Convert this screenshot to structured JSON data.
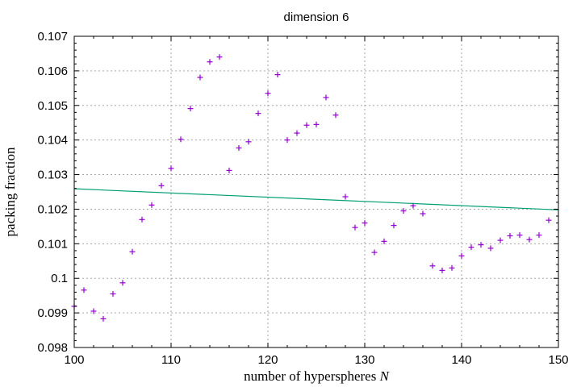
{
  "chart_data": {
    "type": "scatter",
    "title": "dimension 6",
    "xlabel_main": "number of hyperspheres ",
    "xlabel_var": "N",
    "ylabel": "packing fraction",
    "xlim": [
      100,
      150
    ],
    "ylim": [
      0.098,
      0.107
    ],
    "grid": true,
    "xticks": [
      100,
      110,
      120,
      130,
      140,
      150
    ],
    "xtick_labels": [
      "100",
      "110",
      "120",
      "130",
      "140",
      "150"
    ],
    "yticks": [
      0.098,
      0.099,
      0.1,
      0.101,
      0.102,
      0.103,
      0.104,
      0.105,
      0.106,
      0.107
    ],
    "ytick_labels": [
      "0.098",
      "0.099",
      "0.1",
      "0.101",
      "0.102",
      "0.103",
      "0.104",
      "0.105",
      "0.106",
      "0.107"
    ],
    "series": [
      {
        "kind": "points",
        "color": "#9400d3",
        "x": [
          100,
          101,
          102,
          103,
          104,
          105,
          106,
          107,
          108,
          109,
          110,
          111,
          112,
          113,
          114,
          115,
          116,
          117,
          118,
          119,
          120,
          121,
          122,
          123,
          124,
          125,
          126,
          127,
          128,
          129,
          130,
          131,
          132,
          133,
          134,
          135,
          136,
          137,
          138,
          139,
          140,
          141,
          142,
          143,
          144,
          145,
          146,
          147,
          148,
          149
        ],
        "y": [
          0.09919,
          0.09966,
          0.09905,
          0.09883,
          0.09955,
          0.09987,
          0.10077,
          0.1017,
          0.10212,
          0.10268,
          0.10318,
          0.10402,
          0.10491,
          0.10581,
          0.10626,
          0.1064,
          0.10312,
          0.10377,
          0.10395,
          0.10477,
          0.10535,
          0.10589,
          0.104,
          0.1042,
          0.10443,
          0.10445,
          0.10523,
          0.10472,
          0.10236,
          0.10147,
          0.1016,
          0.10075,
          0.10107,
          0.10153,
          0.10195,
          0.1021,
          0.10187,
          0.10036,
          0.10023,
          0.1003,
          0.10065,
          0.1009,
          0.10097,
          0.10087,
          0.1011,
          0.10123,
          0.10125,
          0.10112,
          0.10125,
          0.10168
        ]
      },
      {
        "kind": "line",
        "color": "#009e73",
        "x": [
          100,
          150
        ],
        "y": [
          0.10259,
          0.10198
        ]
      }
    ]
  }
}
